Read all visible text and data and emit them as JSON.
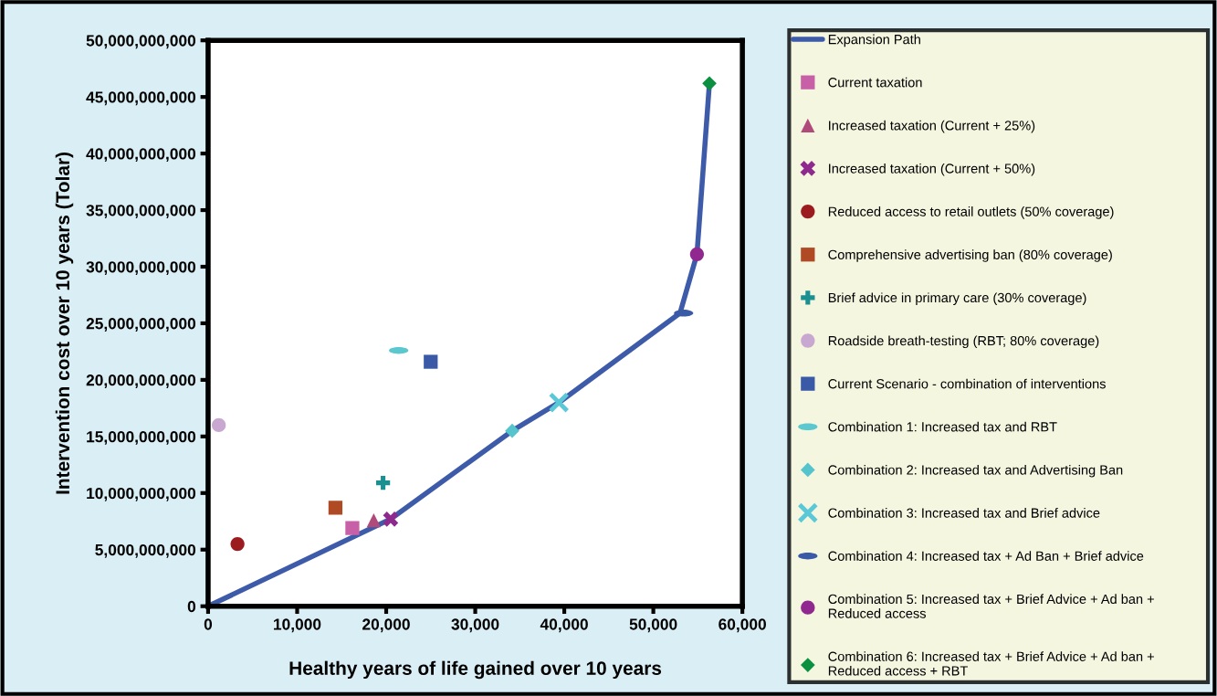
{
  "chart_data": {
    "type": "scatter",
    "xlabel": "Healthy years of life gained over 10 years",
    "ylabel": "Intervention cost over 10 years (Tolar)",
    "xlim": [
      0,
      60000
    ],
    "xticks": [
      0,
      {
        "value": 10000,
        "label": "10,000"
      },
      {
        "value": 20000,
        "label": "20,000"
      },
      {
        "value": 30000,
        "label": "30,000"
      },
      {
        "value": 40000,
        "label": "40,000"
      },
      {
        "value": 50000,
        "label": "50,000"
      },
      {
        "value": 60000,
        "label": "60,000"
      }
    ],
    "ylim": [
      0,
      50000000000
    ],
    "yticks": [
      0,
      {
        "value": 5000000000,
        "label": "5,000,000,000"
      },
      {
        "value": 10000000000,
        "label": "10,000,000,000"
      },
      {
        "value": 15000000000,
        "label": "15,000,000,000"
      },
      {
        "value": 20000000000,
        "label": "20,000,000,000"
      },
      {
        "value": 25000000000,
        "label": "25,000,000,000"
      },
      {
        "value": 30000000000,
        "label": "30,000,000,000"
      },
      {
        "value": 35000000000,
        "label": "35,000,000,000"
      },
      {
        "value": 40000000000,
        "label": "40,000,000,000"
      },
      {
        "value": 45000000000,
        "label": "45,000,000,000"
      },
      {
        "value": 50000000000,
        "label": "50,000,000,000"
      }
    ],
    "grid": false,
    "legend": "right",
    "series": [
      {
        "name": "Expansion Path",
        "type": "line",
        "color": "#3d5ba8",
        "marker": "none",
        "line_style": "solid",
        "x": [
          0,
          20500,
          34150,
          39400,
          53000,
          54900,
          56300
        ],
        "values": [
          0,
          7700000000,
          15500000000,
          18000000000,
          25900000000,
          31100000000,
          46200000000
        ]
      },
      {
        "name": "Current taxation",
        "color": "#c860a8",
        "marker": "square",
        "x": [
          16200
        ],
        "values": [
          6900000000
        ]
      },
      {
        "name": "Increased taxation (Current + 25%)",
        "color": "#b04a7a",
        "marker": "triangle",
        "x": [
          18600
        ],
        "values": [
          7600000000
        ]
      },
      {
        "name": "Increased taxation (Current + 50%)",
        "color": "#8e2a8e",
        "marker": "cross",
        "x": [
          20500
        ],
        "values": [
          7700000000
        ]
      },
      {
        "name": "Reduced access to retail outlets (50% coverage)",
        "color": "#9b1b1f",
        "marker": "circle",
        "x": [
          3300
        ],
        "values": [
          5500000000
        ]
      },
      {
        "name": "Comprehensive advertising ban (80% coverage)",
        "color": "#b04a24",
        "marker": "square",
        "x": [
          14300
        ],
        "values": [
          8700000000
        ]
      },
      {
        "name": "Brief advice in primary care (30% coverage)",
        "color": "#1a9090",
        "marker": "plus",
        "x": [
          19650
        ],
        "values": [
          10900000000
        ]
      },
      {
        "name": "Roadside breath-testing (RBT; 80% coverage)",
        "color": "#c8a8d0",
        "marker": "circle",
        "x": [
          1200
        ],
        "values": [
          16000000000
        ]
      },
      {
        "name": "Current Scenario - combination of interventions",
        "color": "#3a5aa8",
        "marker": "square",
        "x": [
          25000
        ],
        "values": [
          21600000000
        ]
      },
      {
        "name": "Combination 1: Increased tax and RBT",
        "color": "#5bc8d0",
        "x": [
          21400
        ],
        "values": [
          22600000000
        ]
      },
      {
        "name": "Combination 2: Increased tax and Advertising Ban",
        "color": "#55c4cc",
        "marker": "diamond",
        "x": [
          34150
        ],
        "values": [
          15500000000
        ]
      },
      {
        "name": "Combination 3: Increased tax and Brief advice",
        "color": "#5bc8d8",
        "marker": "x",
        "x": [
          39400
        ],
        "values": [
          18000000000
        ]
      },
      {
        "name": "Combination 4: Increased tax + Ad Ban + Brief advice",
        "color": "#3a5aa8",
        "x": [
          53400
        ],
        "values": [
          25900000000
        ]
      },
      {
        "name": "Combination 5: Increased tax + Brief Advice + Ad ban +\nReduced access",
        "color": "#902890",
        "marker": "circle",
        "x": [
          54900
        ],
        "values": [
          31100000000
        ]
      },
      {
        "name": "Combination 6: Increased tax + Brief Advice + Ad ban +\nReduced access + RBT",
        "color": "#0a9040",
        "marker": "diamond",
        "x": [
          56300
        ],
        "values": [
          46200000000
        ]
      }
    ]
  }
}
